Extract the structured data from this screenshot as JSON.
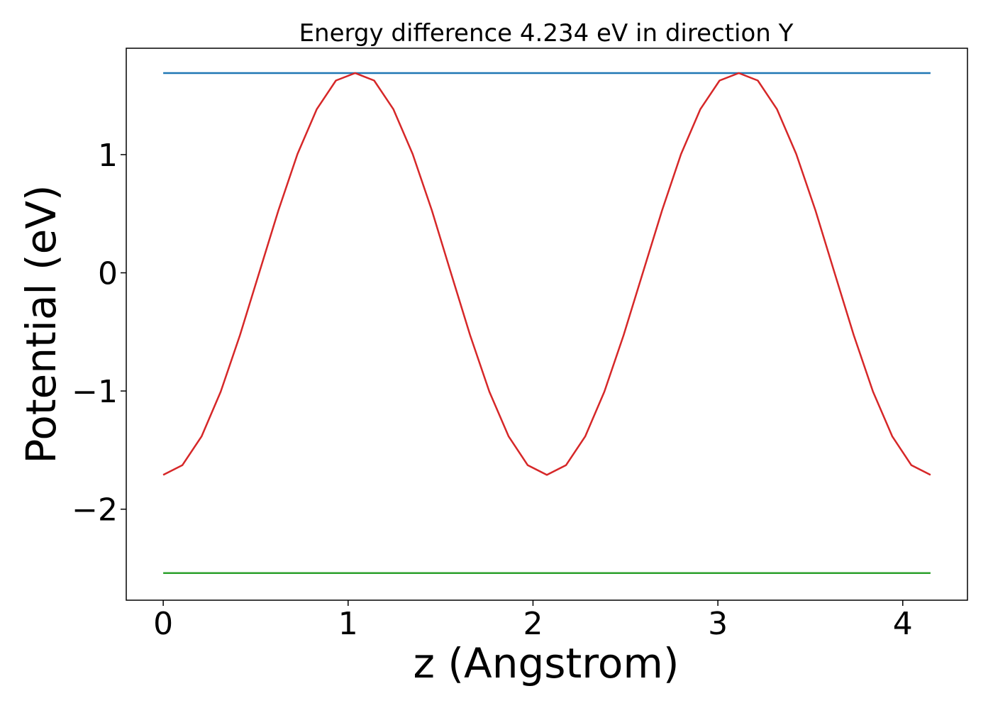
{
  "chart_data": {
    "type": "line",
    "title": "Energy difference 4.234 eV in direction Y",
    "xlabel": "z (Angstrom)",
    "ylabel": "Potential (eV)",
    "xlim": [
      -0.2,
      4.35
    ],
    "ylim": [
      -2.77,
      1.9
    ],
    "x_ticks": [
      0,
      1,
      2,
      3,
      4
    ],
    "x_tick_labels": [
      "0",
      "1",
      "2",
      "3",
      "4"
    ],
    "y_ticks": [
      -2,
      -1,
      0,
      1
    ],
    "y_tick_labels": [
      "−2",
      "−1",
      "0",
      "1"
    ],
    "grid": false,
    "legend": "none",
    "series": [
      {
        "color": "#1f77b4",
        "x": [
          0,
          4.15
        ],
        "y": [
          1.69,
          1.69
        ]
      },
      {
        "color": "#d62728",
        "x": [
          0,
          0.104,
          0.208,
          0.311,
          0.415,
          0.519,
          0.623,
          0.726,
          0.83,
          0.934,
          1.038,
          1.141,
          1.245,
          1.349,
          1.453,
          1.556,
          1.66,
          1.764,
          1.868,
          1.971,
          2.075,
          2.179,
          2.283,
          2.386,
          2.49,
          2.594,
          2.698,
          2.801,
          2.905,
          3.009,
          3.113,
          3.216,
          3.32,
          3.424,
          3.528,
          3.631,
          3.735,
          3.839,
          3.943,
          4.046,
          4.15
        ],
        "y": [
          -1.71,
          -1.627,
          -1.383,
          -1.005,
          -0.528,
          0,
          0.528,
          1.005,
          1.383,
          1.627,
          1.69,
          1.627,
          1.383,
          1.005,
          0.528,
          0,
          -0.528,
          -1.005,
          -1.383,
          -1.627,
          -1.71,
          -1.627,
          -1.383,
          -1.005,
          -0.528,
          0,
          0.528,
          1.005,
          1.383,
          1.627,
          1.69,
          1.627,
          1.383,
          1.005,
          0.528,
          0,
          -0.528,
          -1.005,
          -1.383,
          -1.627,
          -1.71
        ]
      },
      {
        "color": "#2ca02c",
        "x": [
          0,
          4.15
        ],
        "y": [
          -2.54,
          -2.54
        ]
      }
    ]
  }
}
